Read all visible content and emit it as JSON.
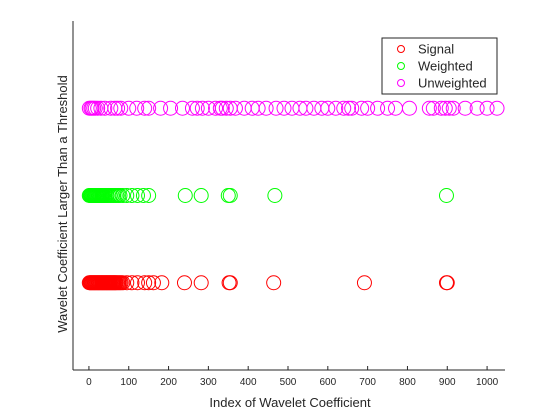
{
  "chart_data": {
    "type": "scatter",
    "title": "",
    "xlabel": "Index of Wavelet Coefficient",
    "ylabel": "Wavelet Coefficient Larger Than a Threshold",
    "xlim": [
      -40,
      1045
    ],
    "ylim": [
      0,
      4
    ],
    "xticks": [
      0,
      100,
      200,
      300,
      400,
      500,
      600,
      700,
      800,
      900,
      1000
    ],
    "yticks": [],
    "grid": false,
    "legend_position": "top-right",
    "series": [
      {
        "name": "Signal",
        "color": "#ff0000",
        "marker": "circle",
        "y": 1,
        "x": [
          1,
          3,
          5,
          7,
          9,
          11,
          13,
          15,
          17,
          19,
          21,
          23,
          25,
          27,
          29,
          31,
          33,
          35,
          37,
          39,
          41,
          43,
          45,
          47,
          49,
          51,
          53,
          55,
          57,
          59,
          61,
          63,
          65,
          67,
          69,
          72,
          75,
          78,
          81,
          85,
          95,
          108,
          122,
          140,
          150,
          162,
          183,
          240,
          282,
          352,
          355,
          464,
          692,
          898,
          900
        ]
      },
      {
        "name": "Weighted",
        "color": "#00ff00",
        "marker": "circle",
        "y": 2,
        "x": [
          1,
          3,
          5,
          7,
          9,
          11,
          13,
          15,
          17,
          19,
          21,
          23,
          25,
          27,
          29,
          31,
          33,
          35,
          37,
          40,
          43,
          46,
          50,
          54,
          58,
          62,
          66,
          70,
          74,
          78,
          85,
          95,
          108,
          122,
          137,
          150,
          242,
          282,
          350,
          355,
          467,
          898
        ]
      },
      {
        "name": "Unweighted",
        "color": "#ff00ff",
        "marker": "circle",
        "y": 3,
        "x": [
          1,
          5,
          8,
          12,
          16,
          22,
          30,
          40,
          55,
          65,
          72,
          80,
          100,
          120,
          140,
          150,
          180,
          205,
          235,
          260,
          272,
          285,
          300,
          318,
          330,
          335,
          345,
          355,
          368,
          390,
          410,
          425,
          445,
          470,
          490,
          510,
          530,
          545,
          565,
          585,
          600,
          620,
          640,
          652,
          660,
          685,
          700,
          725,
          750,
          770,
          805,
          855,
          865,
          885,
          895,
          905,
          915,
          945,
          975,
          1000,
          1025
        ]
      }
    ]
  }
}
